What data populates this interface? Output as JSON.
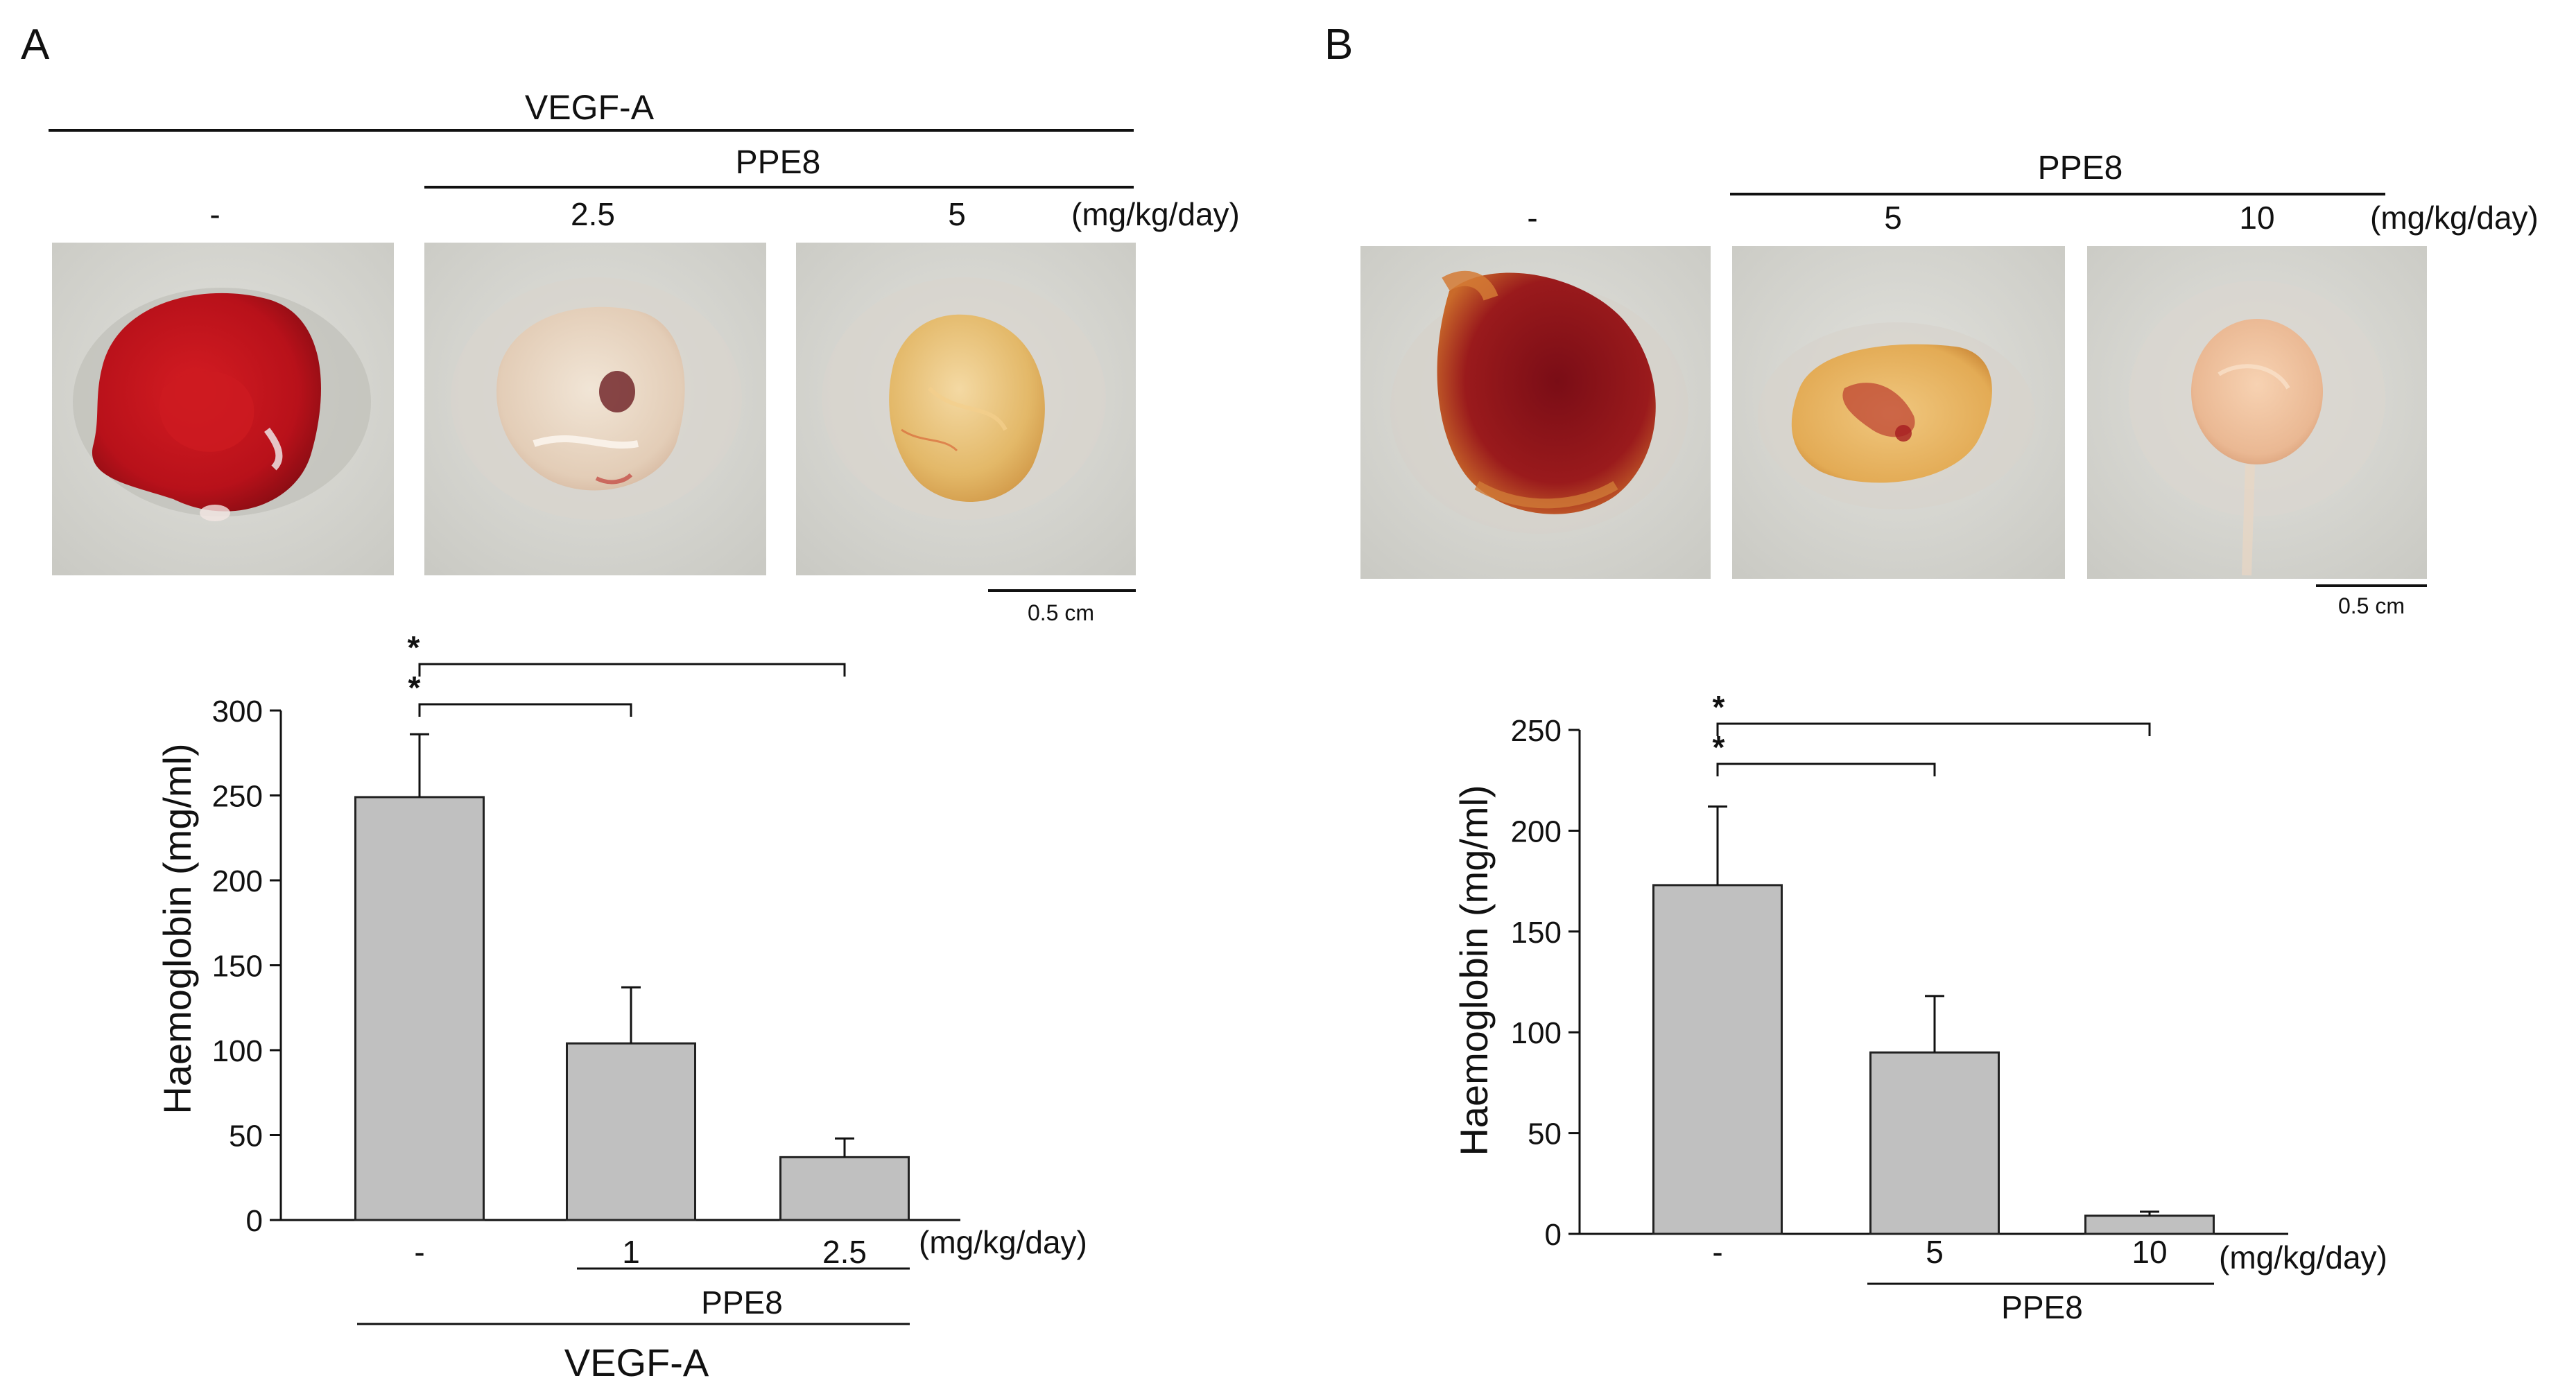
{
  "colors": {
    "bar_fill": "#c0c0c0",
    "bar_stroke": "#222222",
    "ink": "#111111",
    "photo_bg_light": "#d9d9d4",
    "photo_bg_dark": "#cfcfc9",
    "plug_red": "#c3141b",
    "plug_dark_red": "#8e1119",
    "plug_pale": "#ead9c6",
    "plug_yellow": "#e6c27b"
  },
  "panel_a": {
    "label": "A",
    "header": {
      "treatment": "VEGF-A",
      "drug": "PPE8",
      "doses": [
        "-",
        "2.5",
        "5"
      ],
      "unit": "(mg/kg/day)"
    },
    "photos": [
      {
        "name": "vegf-control",
        "appearance": "red"
      },
      {
        "name": "ppe8-2.5",
        "appearance": "pale"
      },
      {
        "name": "ppe8-5",
        "appearance": "yellow"
      }
    ],
    "scale_bar": "0.5 cm"
  },
  "panel_b": {
    "label": "B",
    "header": {
      "drug": "PPE8",
      "doses": [
        "-",
        "5",
        "10"
      ],
      "unit": "(mg/kg/day)"
    },
    "photos": [
      {
        "name": "control",
        "appearance": "dark-red"
      },
      {
        "name": "ppe8-5",
        "appearance": "yellow-red"
      },
      {
        "name": "ppe8-10",
        "appearance": "pale"
      }
    ],
    "scale_bar": "0.5 cm"
  },
  "chart_data": [
    {
      "type": "bar",
      "panel": "A",
      "categories": [
        "-",
        "1",
        "2.5"
      ],
      "values": [
        249,
        104,
        37
      ],
      "errors": [
        37,
        33,
        11
      ],
      "ylabel": "Haemoglobin (mg/ml)",
      "ylim": [
        0,
        300
      ],
      "yticks": [
        0,
        50,
        100,
        150,
        200,
        250,
        300
      ],
      "unit_label": "(mg/kg/day)",
      "group_label": "PPE8",
      "treatment_label": "VEGF-A",
      "significance": [
        {
          "from": 0,
          "to": 1,
          "label": "*"
        },
        {
          "from": 0,
          "to": 2,
          "label": "*"
        }
      ]
    },
    {
      "type": "bar",
      "panel": "B",
      "categories": [
        "-",
        "5",
        "10"
      ],
      "values": [
        173,
        90,
        9
      ],
      "errors": [
        39,
        28,
        2
      ],
      "ylabel": "Haemoglobin (mg/ml)",
      "ylim": [
        0,
        250
      ],
      "yticks": [
        0,
        50,
        100,
        150,
        200,
        250
      ],
      "unit_label": "(mg/kg/day)",
      "group_label": "PPE8",
      "significance": [
        {
          "from": 0,
          "to": 1,
          "label": "*"
        },
        {
          "from": 0,
          "to": 2,
          "label": "*"
        }
      ]
    }
  ]
}
